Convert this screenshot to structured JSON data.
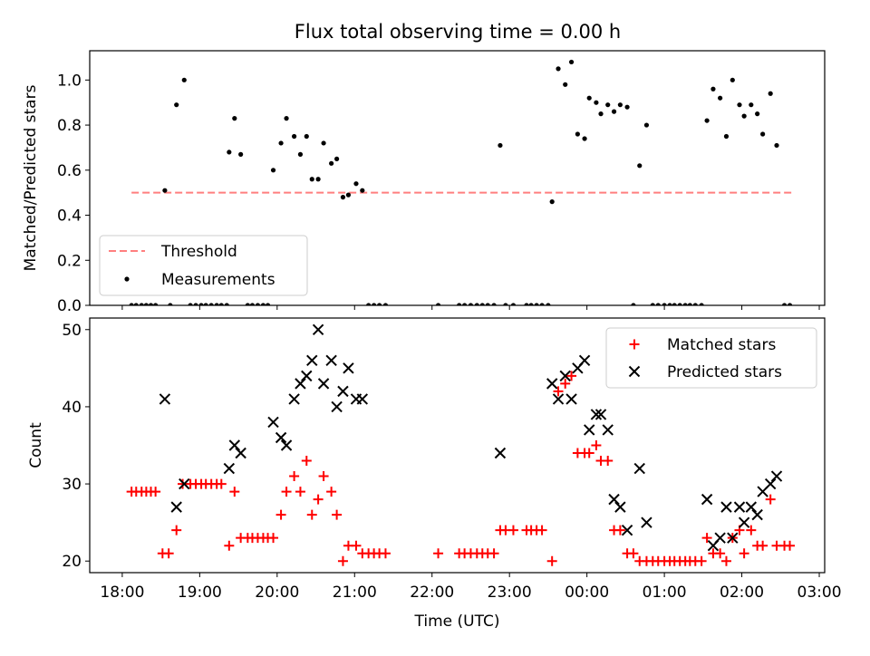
{
  "figure": {
    "title": "Flux total observing time = 0.00 h"
  },
  "chart_data": [
    {
      "type": "scatter",
      "panel": "top",
      "title": "Flux total observing time = 0.00 h",
      "ylabel": "Matched/Predicted stars",
      "xlabel": "",
      "ylim": [
        0,
        1.13
      ],
      "xlim": [
        -0.42,
        9.07
      ],
      "x_axis_origin": "18:00",
      "yticks": [
        0.0,
        0.2,
        0.4,
        0.6,
        0.8,
        1.0
      ],
      "ytick_labels": [
        "0.0",
        "0.2",
        "0.4",
        "0.6",
        "0.8",
        "1.0"
      ],
      "threshold": {
        "name": "Threshold",
        "value": 0.5,
        "x_range": [
          0.12,
          8.64
        ],
        "color": "#ff7f7f"
      },
      "legend": {
        "position": "lower-left",
        "entries": [
          "Threshold",
          "Measurements"
        ]
      },
      "series": [
        {
          "name": "Measurements",
          "color": "#000000",
          "points": [
            [
              0.12,
              0
            ],
            [
              0.18,
              0
            ],
            [
              0.25,
              0
            ],
            [
              0.31,
              0
            ],
            [
              0.37,
              0
            ],
            [
              0.43,
              0
            ],
            [
              0.55,
              0.51
            ],
            [
              0.62,
              0
            ],
            [
              0.7,
              0.89
            ],
            [
              0.8,
              1.0
            ],
            [
              0.88,
              0
            ],
            [
              0.95,
              0
            ],
            [
              1.02,
              0
            ],
            [
              1.08,
              0
            ],
            [
              1.15,
              0
            ],
            [
              1.22,
              0
            ],
            [
              1.28,
              0
            ],
            [
              1.35,
              0
            ],
            [
              1.38,
              0.68
            ],
            [
              1.45,
              0.83
            ],
            [
              1.53,
              0.67
            ],
            [
              1.62,
              0
            ],
            [
              1.68,
              0
            ],
            [
              1.75,
              0
            ],
            [
              1.82,
              0
            ],
            [
              1.88,
              0
            ],
            [
              1.95,
              0.6
            ],
            [
              2.05,
              0.72
            ],
            [
              2.12,
              0.83
            ],
            [
              2.22,
              0.75
            ],
            [
              2.3,
              0.67
            ],
            [
              2.38,
              0.75
            ],
            [
              2.45,
              0.56
            ],
            [
              2.53,
              0.56
            ],
            [
              2.6,
              0.72
            ],
            [
              2.7,
              0.63
            ],
            [
              2.77,
              0.65
            ],
            [
              2.85,
              0.48
            ],
            [
              2.92,
              0.49
            ],
            [
              3.02,
              0.54
            ],
            [
              3.1,
              0.51
            ],
            [
              3.18,
              0
            ],
            [
              3.25,
              0
            ],
            [
              3.32,
              0
            ],
            [
              3.4,
              0
            ],
            [
              4.08,
              0
            ],
            [
              4.35,
              0
            ],
            [
              4.42,
              0
            ],
            [
              4.5,
              0
            ],
            [
              4.58,
              0
            ],
            [
              4.65,
              0
            ],
            [
              4.72,
              0
            ],
            [
              4.8,
              0
            ],
            [
              4.88,
              0.71
            ],
            [
              4.95,
              0
            ],
            [
              5.05,
              0
            ],
            [
              5.22,
              0
            ],
            [
              5.28,
              0
            ],
            [
              5.35,
              0
            ],
            [
              5.42,
              0
            ],
            [
              5.5,
              0
            ],
            [
              5.55,
              0.46
            ],
            [
              5.63,
              1.05
            ],
            [
              5.72,
              0.98
            ],
            [
              5.8,
              1.08
            ],
            [
              5.88,
              0.76
            ],
            [
              5.97,
              0.74
            ],
            [
              6.03,
              0.92
            ],
            [
              6.12,
              0.9
            ],
            [
              6.18,
              0.85
            ],
            [
              6.27,
              0.89
            ],
            [
              6.35,
              0.86
            ],
            [
              6.43,
              0.89
            ],
            [
              6.52,
              0.88
            ],
            [
              6.6,
              0
            ],
            [
              6.68,
              0.62
            ],
            [
              6.77,
              0.8
            ],
            [
              6.85,
              0
            ],
            [
              6.92,
              0
            ],
            [
              7.0,
              0
            ],
            [
              7.07,
              0
            ],
            [
              7.13,
              0
            ],
            [
              7.2,
              0
            ],
            [
              7.27,
              0
            ],
            [
              7.33,
              0
            ],
            [
              7.4,
              0
            ],
            [
              7.48,
              0
            ],
            [
              7.55,
              0.82
            ],
            [
              7.63,
              0.96
            ],
            [
              7.72,
              0.92
            ],
            [
              7.8,
              0.75
            ],
            [
              7.88,
              1.0
            ],
            [
              7.97,
              0.89
            ],
            [
              8.03,
              0.84
            ],
            [
              8.12,
              0.89
            ],
            [
              8.2,
              0.85
            ],
            [
              8.27,
              0.76
            ],
            [
              8.37,
              0.94
            ],
            [
              8.45,
              0.71
            ],
            [
              8.55,
              0
            ],
            [
              8.62,
              0
            ]
          ]
        }
      ]
    },
    {
      "type": "scatter",
      "panel": "bottom",
      "title": "",
      "xlabel": "Time (UTC)",
      "ylabel": "Count",
      "ylim": [
        18.5,
        51.5
      ],
      "xlim": [
        -0.42,
        9.07
      ],
      "x_axis_origin": "18:00",
      "yticks": [
        20,
        30,
        40,
        50
      ],
      "ytick_labels": [
        "20",
        "30",
        "40",
        "50"
      ],
      "xticks": [
        0,
        1,
        2,
        3,
        4,
        5,
        6,
        7,
        8,
        9
      ],
      "xtick_labels": [
        "18:00",
        "19:00",
        "20:00",
        "21:00",
        "22:00",
        "23:00",
        "00:00",
        "01:00",
        "02:00",
        "03:00"
      ],
      "legend": {
        "position": "top-right",
        "entries": [
          "Matched stars",
          "Predicted stars"
        ]
      },
      "series": [
        {
          "name": "Matched stars",
          "marker": "+",
          "color": "#ff0000",
          "points": [
            [
              0.12,
              29
            ],
            [
              0.18,
              29
            ],
            [
              0.25,
              29
            ],
            [
              0.31,
              29
            ],
            [
              0.37,
              29
            ],
            [
              0.43,
              29
            ],
            [
              0.52,
              21
            ],
            [
              0.6,
              21
            ],
            [
              0.7,
              24
            ],
            [
              0.78,
              30
            ],
            [
              0.88,
              30
            ],
            [
              0.95,
              30
            ],
            [
              1.02,
              30
            ],
            [
              1.08,
              30
            ],
            [
              1.15,
              30
            ],
            [
              1.22,
              30
            ],
            [
              1.28,
              30
            ],
            [
              1.38,
              22
            ],
            [
              1.45,
              29
            ],
            [
              1.53,
              23
            ],
            [
              1.62,
              23
            ],
            [
              1.68,
              23
            ],
            [
              1.75,
              23
            ],
            [
              1.82,
              23
            ],
            [
              1.88,
              23
            ],
            [
              1.95,
              23
            ],
            [
              2.05,
              26
            ],
            [
              2.12,
              29
            ],
            [
              2.22,
              31
            ],
            [
              2.3,
              29
            ],
            [
              2.38,
              33
            ],
            [
              2.45,
              26
            ],
            [
              2.53,
              28
            ],
            [
              2.6,
              31
            ],
            [
              2.7,
              29
            ],
            [
              2.77,
              26
            ],
            [
              2.85,
              20
            ],
            [
              2.92,
              22
            ],
            [
              3.02,
              22
            ],
            [
              3.1,
              21
            ],
            [
              3.18,
              21
            ],
            [
              3.25,
              21
            ],
            [
              3.32,
              21
            ],
            [
              3.4,
              21
            ],
            [
              4.08,
              21
            ],
            [
              4.35,
              21
            ],
            [
              4.42,
              21
            ],
            [
              4.5,
              21
            ],
            [
              4.58,
              21
            ],
            [
              4.65,
              21
            ],
            [
              4.72,
              21
            ],
            [
              4.8,
              21
            ],
            [
              4.88,
              24
            ],
            [
              4.95,
              24
            ],
            [
              5.05,
              24
            ],
            [
              5.22,
              24
            ],
            [
              5.28,
              24
            ],
            [
              5.35,
              24
            ],
            [
              5.42,
              24
            ],
            [
              5.55,
              20
            ],
            [
              5.63,
              42
            ],
            [
              5.72,
              43
            ],
            [
              5.8,
              44
            ],
            [
              5.88,
              34
            ],
            [
              5.97,
              34
            ],
            [
              6.03,
              34
            ],
            [
              6.12,
              35
            ],
            [
              6.18,
              33
            ],
            [
              6.27,
              33
            ],
            [
              6.35,
              24
            ],
            [
              6.43,
              24
            ],
            [
              6.52,
              21
            ],
            [
              6.6,
              21
            ],
            [
              6.68,
              20
            ],
            [
              6.77,
              20
            ],
            [
              6.85,
              20
            ],
            [
              6.92,
              20
            ],
            [
              7.0,
              20
            ],
            [
              7.07,
              20
            ],
            [
              7.13,
              20
            ],
            [
              7.2,
              20
            ],
            [
              7.27,
              20
            ],
            [
              7.33,
              20
            ],
            [
              7.4,
              20
            ],
            [
              7.48,
              20
            ],
            [
              7.55,
              23
            ],
            [
              7.63,
              21
            ],
            [
              7.72,
              21
            ],
            [
              7.8,
              20
            ],
            [
              7.88,
              23
            ],
            [
              7.97,
              24
            ],
            [
              8.03,
              21
            ],
            [
              8.12,
              24
            ],
            [
              8.2,
              22
            ],
            [
              8.27,
              22
            ],
            [
              8.37,
              28
            ],
            [
              8.45,
              22
            ],
            [
              8.55,
              22
            ],
            [
              8.62,
              22
            ]
          ]
        },
        {
          "name": "Predicted stars",
          "marker": "x",
          "color": "#000000",
          "points": [
            [
              0.55,
              41
            ],
            [
              0.7,
              27
            ],
            [
              0.8,
              30
            ],
            [
              1.38,
              32
            ],
            [
              1.45,
              35
            ],
            [
              1.53,
              34
            ],
            [
              1.95,
              38
            ],
            [
              2.05,
              36
            ],
            [
              2.12,
              35
            ],
            [
              2.22,
              41
            ],
            [
              2.3,
              43
            ],
            [
              2.38,
              44
            ],
            [
              2.45,
              46
            ],
            [
              2.53,
              50
            ],
            [
              2.6,
              43
            ],
            [
              2.7,
              46
            ],
            [
              2.77,
              40
            ],
            [
              2.85,
              42
            ],
            [
              2.92,
              45
            ],
            [
              3.02,
              41
            ],
            [
              3.1,
              41
            ],
            [
              4.88,
              34
            ],
            [
              5.55,
              43
            ],
            [
              5.63,
              41
            ],
            [
              5.72,
              44
            ],
            [
              5.8,
              41
            ],
            [
              5.88,
              45
            ],
            [
              5.97,
              46
            ],
            [
              6.03,
              37
            ],
            [
              6.12,
              39
            ],
            [
              6.18,
              39
            ],
            [
              6.27,
              37
            ],
            [
              6.35,
              28
            ],
            [
              6.43,
              27
            ],
            [
              6.52,
              24
            ],
            [
              6.68,
              32
            ],
            [
              6.77,
              25
            ],
            [
              7.55,
              28
            ],
            [
              7.63,
              22
            ],
            [
              7.72,
              23
            ],
            [
              7.8,
              27
            ],
            [
              7.88,
              23
            ],
            [
              7.97,
              27
            ],
            [
              8.03,
              25
            ],
            [
              8.12,
              27
            ],
            [
              8.2,
              26
            ],
            [
              8.27,
              29
            ],
            [
              8.37,
              30
            ],
            [
              8.45,
              31
            ]
          ]
        }
      ]
    }
  ]
}
